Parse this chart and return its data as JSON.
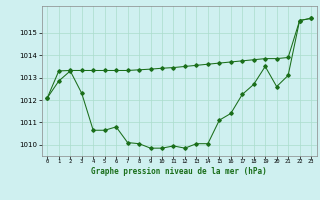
{
  "background_color": "#cff0f0",
  "line_color": "#1a6e1a",
  "grid_color": "#aaddcc",
  "xlabel": "Graphe pression niveau de la mer (hPa)",
  "ylim": [
    1009.5,
    1016.2
  ],
  "yticks": [
    1010,
    1011,
    1012,
    1013,
    1014,
    1015
  ],
  "xticks": [
    0,
    1,
    2,
    3,
    4,
    5,
    6,
    7,
    8,
    9,
    10,
    11,
    12,
    13,
    14,
    15,
    16,
    17,
    18,
    19,
    20,
    21,
    22,
    23
  ],
  "xlim": [
    -0.5,
    23.5
  ],
  "series1_x": [
    0,
    1,
    2,
    3,
    4,
    5,
    6,
    7,
    8,
    9,
    10,
    11,
    12,
    13,
    14,
    15,
    16,
    17,
    18,
    19,
    20,
    21,
    22,
    23
  ],
  "series1_y": [
    1012.1,
    1012.85,
    1013.3,
    1012.3,
    1010.65,
    1010.65,
    1010.8,
    1010.1,
    1010.05,
    1009.85,
    1009.85,
    1009.95,
    1009.85,
    1010.05,
    1010.05,
    1011.1,
    1011.4,
    1012.25,
    1012.7,
    1013.5,
    1012.6,
    1013.1,
    1015.55,
    1015.65
  ],
  "series2_x": [
    0,
    1,
    2,
    3,
    4,
    5,
    6,
    7,
    8,
    9,
    10,
    11,
    12,
    13,
    14,
    15,
    16,
    17,
    18,
    19,
    20,
    21,
    22,
    23
  ],
  "series2_y": [
    1012.1,
    1013.3,
    1013.32,
    1013.32,
    1013.32,
    1013.32,
    1013.32,
    1013.32,
    1013.35,
    1013.38,
    1013.42,
    1013.45,
    1013.5,
    1013.55,
    1013.6,
    1013.65,
    1013.7,
    1013.75,
    1013.8,
    1013.85,
    1013.85,
    1013.9,
    1015.55,
    1015.65
  ]
}
